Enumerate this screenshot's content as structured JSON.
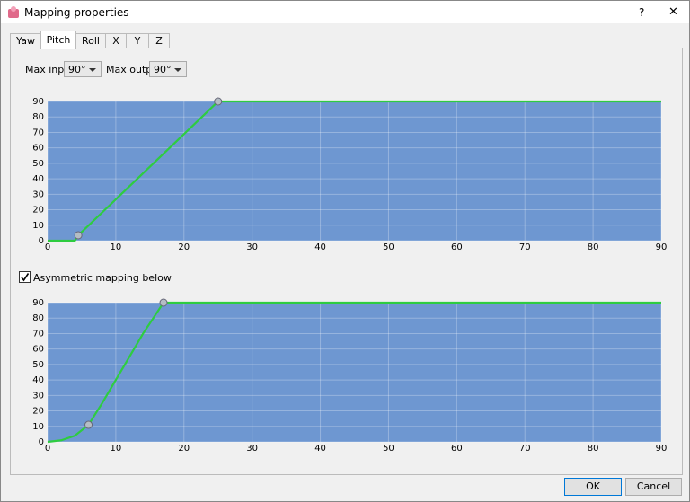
{
  "window": {
    "title": "Mapping properties",
    "help": "?",
    "close": "✕"
  },
  "tabs": [
    "Yaw",
    "Pitch",
    "Roll",
    "X",
    "Y",
    "Z"
  ],
  "active_tab": 1,
  "max_input": {
    "label": "Max input",
    "value": "90°"
  },
  "max_output": {
    "label": "Max output",
    "value": "90°"
  },
  "checkbox": {
    "label": "Asymmetric mapping below",
    "checked": true
  },
  "buttons": [
    "OK",
    "Cancel"
  ],
  "chart_data": [
    {
      "type": "line",
      "x": [
        0,
        4,
        4.5,
        25,
        90
      ],
      "values": [
        0,
        0,
        3.5,
        90,
        90
      ],
      "color": "#2ecc40",
      "points": {
        "x": [
          4.5,
          25
        ],
        "values": [
          3.5,
          90
        ]
      },
      "xlim": [
        0,
        90
      ],
      "ylim": [
        0,
        90
      ],
      "xticks": [
        0,
        10,
        20,
        30,
        40,
        50,
        60,
        70,
        80,
        90
      ],
      "yticks": [
        0,
        10,
        20,
        30,
        40,
        50,
        60,
        70,
        80,
        90
      ],
      "grid": true
    },
    {
      "type": "line",
      "x": [
        0,
        2,
        4,
        6,
        8,
        10,
        12,
        14,
        17,
        90
      ],
      "values": [
        0,
        1,
        4,
        11,
        25,
        40,
        55,
        70,
        90,
        90
      ],
      "color": "#2ecc40",
      "points": {
        "x": [
          6,
          17
        ],
        "values": [
          11,
          90
        ]
      },
      "xlim": [
        0,
        90
      ],
      "ylim": [
        0,
        90
      ],
      "xticks": [
        0,
        10,
        20,
        30,
        40,
        50,
        60,
        70,
        80,
        90
      ],
      "yticks": [
        0,
        10,
        20,
        30,
        40,
        50,
        60,
        70,
        80,
        90
      ],
      "grid": true
    }
  ]
}
